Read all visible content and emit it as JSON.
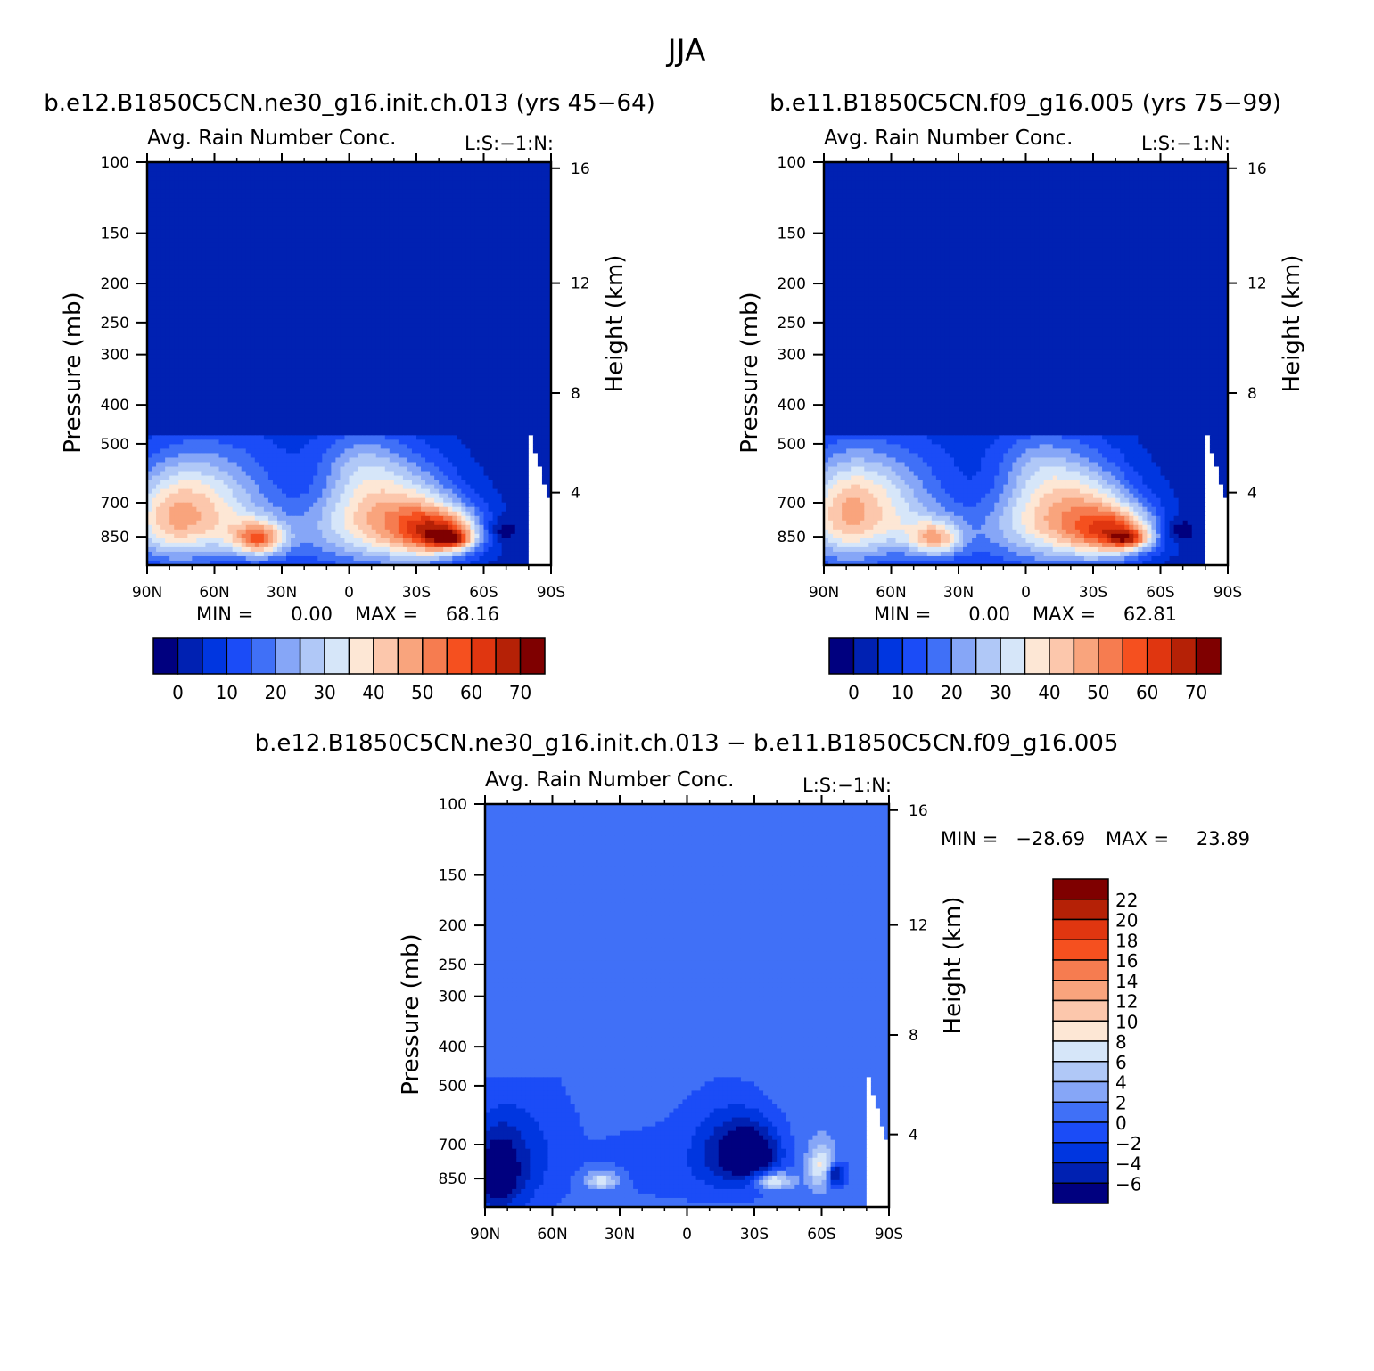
{
  "figure_title": "JJA",
  "cmap_abs": [
    "#00007f",
    "#0021b2",
    "#0036e0",
    "#1b4cf7",
    "#4070f7",
    "#86a6f7",
    "#b0c8f7",
    "#d6e6f9",
    "#fde7d5",
    "#fcc7ac",
    "#f9a47d",
    "#f67c50",
    "#f5501f",
    "#e03610",
    "#b52106",
    "#7f0000"
  ],
  "cmap_diff": [
    "#00007f",
    "#0021b2",
    "#0036e0",
    "#1b4cf7",
    "#4070f7",
    "#86a6f7",
    "#b0c8f7",
    "#d6e6f9",
    "#fde7d5",
    "#fcc7ac",
    "#f9a47d",
    "#f67c50",
    "#f5501f",
    "#e03610",
    "#b52106",
    "#7f0000"
  ],
  "chart_data": [
    {
      "type": "heatmap",
      "case_title": "b.e12.B1850C5CN.ne30_g16.init.ch.013 (yrs 45-64)",
      "title": "Avg. Rain Number Conc.",
      "corner_label": "L:S:-1:N:",
      "ylabel": "Pressure (mb)",
      "y2label": "Height (km)",
      "x_ticks": [
        "90N",
        "60N",
        "30N",
        "0",
        "30S",
        "60S",
        "90S"
      ],
      "x_range": [
        90,
        -90
      ],
      "y_ticks": [
        100,
        150,
        200,
        250,
        300,
        400,
        500,
        700,
        850
      ],
      "y_range": [
        100,
        1000
      ],
      "y_scale": "log",
      "y2_ticks": [
        16,
        12,
        8,
        4
      ],
      "stats": {
        "min_label": "MIN =",
        "min": "0.00",
        "max_label": "MAX =",
        "max": "68.16"
      },
      "colorbar": {
        "levels": [
          0,
          5,
          10,
          15,
          20,
          25,
          30,
          35,
          40,
          45,
          50,
          55,
          60,
          65,
          70
        ],
        "labels": [
          "0",
          "10",
          "20",
          "30",
          "40",
          "50",
          "60",
          "70"
        ],
        "orientation": "horizontal"
      },
      "field": [
        {
          "x": 0,
          "y": 720,
          "sx": 15,
          "sy": 140,
          "v": 6
        },
        {
          "x": 40,
          "y": 760,
          "sx": 55,
          "sy": 200,
          "v": 17
        },
        {
          "x": 62,
          "y": 620,
          "sx": 20,
          "sy": 110,
          "v": 12
        },
        {
          "x": 78,
          "y": 780,
          "sx": 14,
          "sy": 130,
          "v": 28
        },
        {
          "x": 55,
          "y": 810,
          "sx": 10,
          "sy": 90,
          "v": 8
        },
        {
          "x": 40,
          "y": 860,
          "sx": 8,
          "sy": 60,
          "v": 37
        },
        {
          "x": 20,
          "y": 620,
          "sx": 20,
          "sy": 80,
          "v": -6
        },
        {
          "x": 18,
          "y": 720,
          "sx": 12,
          "sy": 90,
          "v": -4
        },
        {
          "x": -5,
          "y": 560,
          "sx": 12,
          "sy": 70,
          "v": 9
        },
        {
          "x": -10,
          "y": 760,
          "sx": 18,
          "sy": 160,
          "v": 18
        },
        {
          "x": -28,
          "y": 780,
          "sx": 15,
          "sy": 150,
          "v": 22
        },
        {
          "x": -42,
          "y": 830,
          "sx": 12,
          "sy": 80,
          "v": 42
        },
        {
          "x": -46,
          "y": 860,
          "sx": 6,
          "sy": 30,
          "v": 25
        },
        {
          "x": -68,
          "y": 820,
          "sx": 5,
          "sy": 40,
          "v": -10
        }
      ]
    },
    {
      "type": "heatmap",
      "case_title": "b.e11.B1850C5CN.f09_g16.005 (yrs 75-99)",
      "title": "Avg. Rain Number Conc.",
      "corner_label": "L:S:-1:N:",
      "ylabel": "Pressure (mb)",
      "y2label": "Height (km)",
      "x_ticks": [
        "90N",
        "60N",
        "30N",
        "0",
        "30S",
        "60S",
        "90S"
      ],
      "x_range": [
        90,
        -90
      ],
      "y_ticks": [
        100,
        150,
        200,
        250,
        300,
        400,
        500,
        700,
        850
      ],
      "y_range": [
        100,
        1000
      ],
      "y_scale": "log",
      "y2_ticks": [
        16,
        12,
        8,
        4
      ],
      "stats": {
        "min_label": "MIN =",
        "min": "0.00",
        "max_label": "MAX =",
        "max": "62.81"
      },
      "colorbar": {
        "levels": [
          0,
          5,
          10,
          15,
          20,
          25,
          30,
          35,
          40,
          45,
          50,
          55,
          60,
          65,
          70
        ],
        "labels": [
          "0",
          "10",
          "20",
          "30",
          "40",
          "50",
          "60",
          "70"
        ],
        "orientation": "horizontal"
      },
      "field": [
        {
          "x": 0,
          "y": 720,
          "sx": 15,
          "sy": 140,
          "v": 6
        },
        {
          "x": 40,
          "y": 760,
          "sx": 55,
          "sy": 200,
          "v": 15
        },
        {
          "x": 62,
          "y": 620,
          "sx": 20,
          "sy": 110,
          "v": 10
        },
        {
          "x": 80,
          "y": 760,
          "sx": 14,
          "sy": 150,
          "v": 30
        },
        {
          "x": 55,
          "y": 810,
          "sx": 10,
          "sy": 90,
          "v": 8
        },
        {
          "x": 40,
          "y": 860,
          "sx": 8,
          "sy": 60,
          "v": 30
        },
        {
          "x": 20,
          "y": 620,
          "sx": 20,
          "sy": 80,
          "v": -6
        },
        {
          "x": 18,
          "y": 720,
          "sx": 12,
          "sy": 90,
          "v": -4
        },
        {
          "x": -5,
          "y": 560,
          "sx": 12,
          "sy": 70,
          "v": 8
        },
        {
          "x": -10,
          "y": 760,
          "sx": 18,
          "sy": 160,
          "v": 18
        },
        {
          "x": -28,
          "y": 760,
          "sx": 15,
          "sy": 150,
          "v": 24
        },
        {
          "x": -42,
          "y": 830,
          "sx": 12,
          "sy": 80,
          "v": 36
        },
        {
          "x": -46,
          "y": 860,
          "sx": 6,
          "sy": 30,
          "v": 22
        },
        {
          "x": -68,
          "y": 820,
          "sx": 5,
          "sy": 40,
          "v": -10
        }
      ]
    },
    {
      "type": "heatmap",
      "case_title": "b.e12.B1850C5CN.ne30_g16.init.ch.013 - b.e11.B1850C5CN.f09_g16.005",
      "title": "Avg. Rain Number Conc.",
      "corner_label": "L:S:-1:N:",
      "ylabel": "Pressure (mb)",
      "y2label": "Height (km)",
      "x_ticks": [
        "90N",
        "60N",
        "30N",
        "0",
        "30S",
        "60S",
        "90S"
      ],
      "x_range": [
        90,
        -90
      ],
      "y_ticks": [
        100,
        150,
        200,
        250,
        300,
        400,
        500,
        700,
        850
      ],
      "y_range": [
        100,
        1000
      ],
      "y_scale": "log",
      "y2_ticks": [
        16,
        12,
        8,
        4
      ],
      "stats": {
        "min_label": "MIN =",
        "min": "-28.69",
        "max_label": "MAX =",
        "max": "23.89"
      },
      "colorbar": {
        "levels": [
          -6,
          -4,
          -2,
          0,
          2,
          4,
          6,
          8,
          10,
          12,
          14,
          16,
          18,
          20,
          22
        ],
        "labels": [
          "22",
          "20",
          "18",
          "16",
          "14",
          "12",
          "10",
          "8",
          "6",
          "4",
          "2",
          "0",
          "-2",
          "-4",
          "-6"
        ],
        "orientation": "vertical"
      },
      "field": [
        {
          "x": 85,
          "y": 820,
          "sx": 8,
          "sy": 150,
          "v": -9
        },
        {
          "x": 70,
          "y": 760,
          "sx": 10,
          "sy": 180,
          "v": -3
        },
        {
          "x": 40,
          "y": 640,
          "sx": 40,
          "sy": 260,
          "v": -0.8
        },
        {
          "x": 38,
          "y": 860,
          "sx": 5,
          "sy": 30,
          "v": 7
        },
        {
          "x": 0,
          "y": 820,
          "sx": 25,
          "sy": 120,
          "v": -1.2
        },
        {
          "x": -20,
          "y": 720,
          "sx": 12,
          "sy": 120,
          "v": -6
        },
        {
          "x": -30,
          "y": 740,
          "sx": 8,
          "sy": 80,
          "v": -7
        },
        {
          "x": -38,
          "y": 860,
          "sx": 6,
          "sy": 30,
          "v": 9
        },
        {
          "x": -60,
          "y": 790,
          "sx": 4,
          "sy": 70,
          "v": 8
        },
        {
          "x": -66,
          "y": 830,
          "sx": 3,
          "sy": 40,
          "v": -9
        }
      ]
    }
  ]
}
